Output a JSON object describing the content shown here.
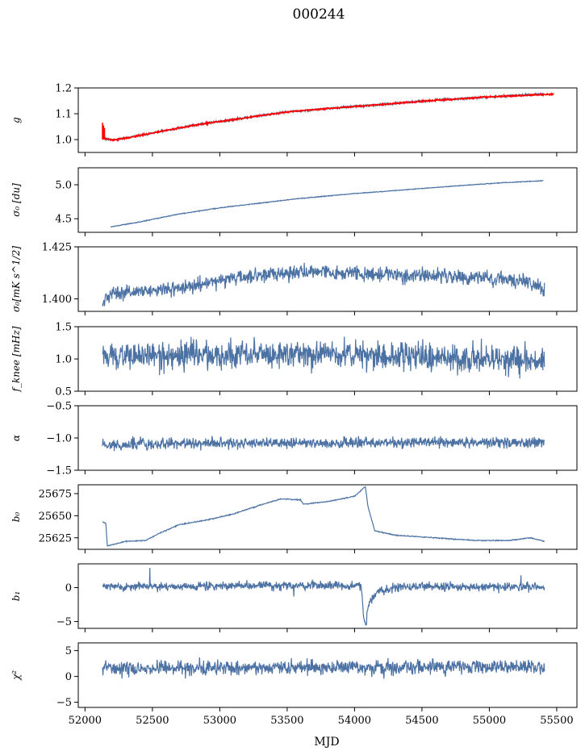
{
  "figure": {
    "title": "000244",
    "xlabel": "MJD"
  },
  "chart_data": {
    "type": "line",
    "x_axis": {
      "label": "MJD",
      "range": [
        51950,
        55650
      ],
      "ticks": [
        52000,
        52500,
        53000,
        53500,
        54000,
        54500,
        55000,
        55500
      ],
      "shared": true
    },
    "series_color": "#4c72a4",
    "overlay_color": "#ff0000",
    "panels": [
      {
        "ylabel": "g",
        "ylim": [
          0.95,
          1.2
        ],
        "ticks": [
          1.0,
          1.1,
          1.2
        ],
        "tick_labels": [
          "1.0",
          "1.1",
          "1.2"
        ],
        "series": [
          {
            "style": "line",
            "points": [
              [
                52130,
                1.005
              ],
              [
                52200,
                0.998
              ],
              [
                52300,
                1.005
              ],
              [
                52500,
                1.025
              ],
              [
                52800,
                1.055
              ],
              [
                53000,
                1.07
              ],
              [
                53200,
                1.085
              ],
              [
                53500,
                1.107
              ],
              [
                53800,
                1.12
              ],
              [
                54000,
                1.128
              ],
              [
                54300,
                1.14
              ],
              [
                54600,
                1.152
              ],
              [
                55000,
                1.165
              ],
              [
                55400,
                1.177
              ]
            ],
            "noise": 0.003
          },
          {
            "style": "overlay",
            "points": [
              [
                52130,
                1.005
              ],
              [
                52200,
                0.998
              ],
              [
                52300,
                1.005
              ],
              [
                52500,
                1.025
              ],
              [
                52800,
                1.055
              ],
              [
                53000,
                1.07
              ],
              [
                53200,
                1.085
              ],
              [
                53500,
                1.107
              ],
              [
                53800,
                1.12
              ],
              [
                54000,
                1.128
              ],
              [
                54300,
                1.14
              ],
              [
                54600,
                1.152
              ],
              [
                55000,
                1.165
              ],
              [
                55480,
                1.176
              ]
            ],
            "noise": 0.002,
            "spike": {
              "x": 52130,
              "y_from": 1.0,
              "y_to": 1.065
            }
          }
        ]
      },
      {
        "ylabel": "σ₀ [du]",
        "ylim": [
          4.3,
          5.25
        ],
        "ticks": [
          4.5,
          5.0
        ],
        "tick_labels": [
          "4.5",
          "5.0"
        ],
        "series": [
          {
            "style": "line",
            "points": [
              [
                52190,
                4.38
              ],
              [
                52400,
                4.45
              ],
              [
                52700,
                4.57
              ],
              [
                53000,
                4.66
              ],
              [
                53300,
                4.73
              ],
              [
                53600,
                4.8
              ],
              [
                54000,
                4.87
              ],
              [
                54400,
                4.93
              ],
              [
                54800,
                4.99
              ],
              [
                55100,
                5.03
              ],
              [
                55400,
                5.06
              ]
            ],
            "noise": 0.004
          }
        ]
      },
      {
        "ylabel": "σ₀[mK s^1/2]",
        "ylim": [
          1.394,
          1.425
        ],
        "ticks": [
          1.4,
          1.425
        ],
        "tick_labels": [
          "1.400",
          "1.425"
        ],
        "series": [
          {
            "style": "line",
            "points": [
              [
                52130,
                1.397
              ],
              [
                52200,
                1.403
              ],
              [
                52500,
                1.404
              ],
              [
                52800,
                1.406
              ],
              [
                53100,
                1.41
              ],
              [
                53400,
                1.412
              ],
              [
                53800,
                1.413
              ],
              [
                54200,
                1.412
              ],
              [
                54600,
                1.411
              ],
              [
                55000,
                1.41
              ],
              [
                55300,
                1.408
              ],
              [
                55410,
                1.404
              ]
            ],
            "noise": 0.0025
          }
        ]
      },
      {
        "ylabel": "f_knee [mHz]",
        "ylim": [
          0.5,
          1.5
        ],
        "ticks": [
          0.5,
          1.0,
          1.5
        ],
        "tick_labels": [
          "0.5",
          "1.0",
          "1.5"
        ],
        "series": [
          {
            "style": "line",
            "points": [
              [
                52130,
                1.05
              ],
              [
                53000,
                1.07
              ],
              [
                54000,
                1.05
              ],
              [
                55000,
                1.02
              ],
              [
                55410,
                1.0
              ]
            ],
            "noise": 0.16
          }
        ]
      },
      {
        "ylabel": "α",
        "ylim": [
          -1.5,
          -0.5
        ],
        "ticks": [
          -1.5,
          -1.0,
          -0.5
        ],
        "tick_labels": [
          "−1.5",
          "−1.0",
          "−0.5"
        ],
        "series": [
          {
            "style": "line",
            "points": [
              [
                52130,
                -1.1
              ],
              [
                53000,
                -1.08
              ],
              [
                54000,
                -1.07
              ],
              [
                55000,
                -1.07
              ],
              [
                55410,
                -1.06
              ]
            ],
            "noise": 0.06
          }
        ]
      },
      {
        "ylabel": "b₀",
        "ylim": [
          25612,
          25685
        ],
        "ticks": [
          25625,
          25650,
          25675
        ],
        "tick_labels": [
          "25625",
          "25650",
          "25675"
        ],
        "series": [
          {
            "style": "line",
            "points": [
              [
                52130,
                25643
              ],
              [
                52155,
                25641
              ],
              [
                52165,
                25616
              ],
              [
                52200,
                25617
              ],
              [
                52300,
                25621
              ],
              [
                52450,
                25622
              ],
              [
                52550,
                25630
              ],
              [
                52700,
                25640
              ],
              [
                52900,
                25645
              ],
              [
                53100,
                25652
              ],
              [
                53300,
                25662
              ],
              [
                53450,
                25669
              ],
              [
                53600,
                25668
              ],
              [
                53620,
                25663
              ],
              [
                53800,
                25666
              ],
              [
                54000,
                25672
              ],
              [
                54080,
                25683
              ],
              [
                54100,
                25660
              ],
              [
                54150,
                25633
              ],
              [
                54300,
                25628
              ],
              [
                54600,
                25625
              ],
              [
                54900,
                25622
              ],
              [
                55150,
                25622
              ],
              [
                55300,
                25625
              ],
              [
                55410,
                25621
              ]
            ],
            "noise": 0.4
          }
        ]
      },
      {
        "ylabel": "b₁",
        "ylim": [
          -6,
          3.5
        ],
        "ticks": [
          -5,
          0
        ],
        "tick_labels": [
          "−5",
          "0"
        ],
        "series": [
          {
            "style": "line",
            "points": [
              [
                52130,
                0.1
              ],
              [
                53000,
                0.2
              ],
              [
                54000,
                0.3
              ],
              [
                54050,
                0.4
              ],
              [
                54065,
                -4
              ],
              [
                54085,
                -5.5
              ],
              [
                54100,
                -2.5
              ],
              [
                54160,
                -0.8
              ],
              [
                54300,
                0.1
              ],
              [
                55000,
                0.1
              ],
              [
                55410,
                0.1
              ]
            ],
            "noise": 0.45,
            "spikes": [
              [
                52480,
                2.9
              ],
              [
                53550,
                -1.3
              ],
              [
                55235,
                1.8
              ]
            ]
          }
        ]
      },
      {
        "ylabel": "χ²",
        "ylim": [
          -6,
          6.5
        ],
        "ticks": [
          -5,
          0,
          5
        ],
        "tick_labels": [
          "−5",
          "0",
          "5"
        ],
        "series": [
          {
            "style": "line",
            "points": [
              [
                52130,
                1.5
              ],
              [
                53000,
                1.7
              ],
              [
                54000,
                1.7
              ],
              [
                55000,
                1.9
              ],
              [
                55410,
                2.0
              ]
            ],
            "noise": 1.0
          }
        ]
      }
    ]
  }
}
